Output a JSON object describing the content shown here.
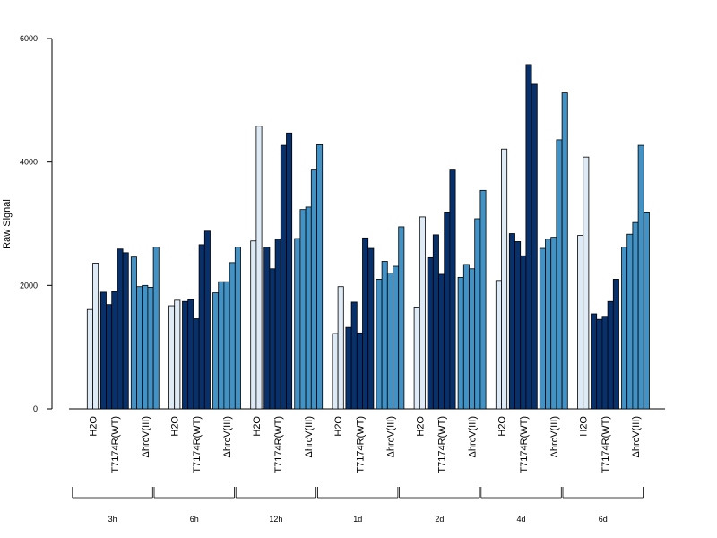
{
  "chart_data": {
    "type": "bar",
    "title": "",
    "xlabel": "",
    "ylabel": "Raw Signal",
    "ylim": [
      0,
      6000
    ],
    "yticks": [
      0,
      2000,
      4000,
      6000
    ],
    "grid": false,
    "legend": "none",
    "colors": {
      "H2O": "#deebf7",
      "T7174R(WT)": "#08306b",
      "ΔhrcV(III)": "#4292c6"
    },
    "groups": [
      {
        "label": "3h",
        "series": [
          {
            "category": "H2O",
            "values": [
              1610,
              2360
            ]
          },
          {
            "category": "T7174R(WT)",
            "values": [
              1890,
              1690,
              1900,
              2590,
              2530
            ]
          },
          {
            "category": "ΔhrcV(III)",
            "values": [
              2460,
              1980,
              2000,
              1970,
              2620
            ]
          }
        ]
      },
      {
        "label": "6h",
        "series": [
          {
            "category": "H2O",
            "values": [
              1670,
              1760
            ]
          },
          {
            "category": "T7174R(WT)",
            "values": [
              1740,
              1770,
              1460,
              2660,
              2880
            ]
          },
          {
            "category": "ΔhrcV(III)",
            "values": [
              1880,
              2060,
              2060,
              2370,
              2620
            ]
          }
        ]
      },
      {
        "label": "12h",
        "series": [
          {
            "category": "H2O",
            "values": [
              2720,
              4580
            ]
          },
          {
            "category": "T7174R(WT)",
            "values": [
              2620,
              2270,
              2750,
              4270,
              4470
            ]
          },
          {
            "category": "ΔhrcV(III)",
            "values": [
              2760,
              3230,
              3270,
              3870,
              4280
            ]
          }
        ]
      },
      {
        "label": "1d",
        "series": [
          {
            "category": "H2O",
            "values": [
              1220,
              1980
            ]
          },
          {
            "category": "T7174R(WT)",
            "values": [
              1320,
              1730,
              1230,
              2770,
              2600
            ]
          },
          {
            "category": "ΔhrcV(III)",
            "values": [
              2100,
              2390,
              2200,
              2310,
              2950
            ]
          }
        ]
      },
      {
        "label": "2d",
        "series": [
          {
            "category": "H2O",
            "values": [
              1650,
              3110
            ]
          },
          {
            "category": "T7174R(WT)",
            "values": [
              2450,
              2820,
              2180,
              3190,
              3870
            ]
          },
          {
            "category": "ΔhrcV(III)",
            "values": [
              2130,
              2340,
              2270,
              3080,
              3540
            ]
          }
        ]
      },
      {
        "label": "4d",
        "series": [
          {
            "category": "H2O",
            "values": [
              2080,
              4210
            ]
          },
          {
            "category": "T7174R(WT)",
            "values": [
              2840,
              2710,
              2480,
              5580,
              5260
            ]
          },
          {
            "category": "ΔhrcV(III)",
            "values": [
              2600,
              2750,
              2780,
              4360,
              5120
            ]
          }
        ]
      },
      {
        "label": "6d",
        "series": [
          {
            "category": "H2O",
            "values": [
              2810,
              4080
            ]
          },
          {
            "category": "T7174R(WT)",
            "values": [
              1540,
              1450,
              1500,
              1740,
              2100
            ]
          },
          {
            "category": "ΔhrcV(III)",
            "values": [
              2620,
              2830,
              3020,
              4270,
              3190
            ]
          }
        ]
      }
    ]
  }
}
